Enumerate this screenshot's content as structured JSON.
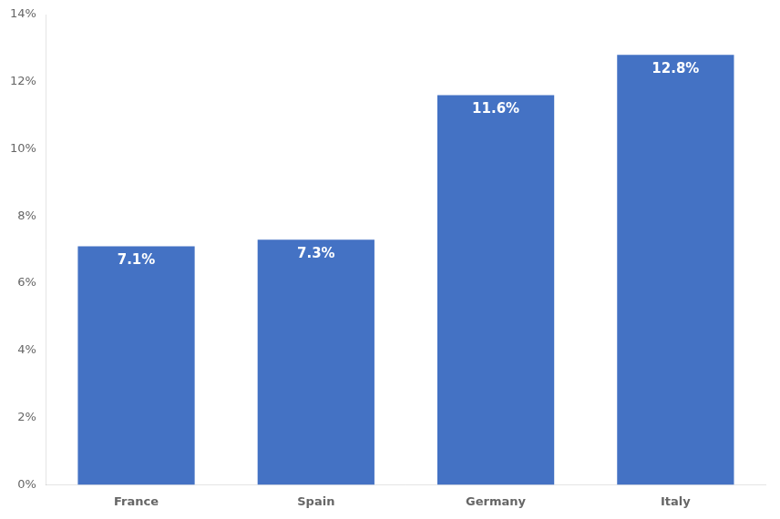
{
  "chart_data": {
    "type": "bar",
    "categories": [
      "France",
      "Spain",
      "Germany",
      "Italy"
    ],
    "values": [
      0.071,
      0.073,
      0.116,
      0.128
    ],
    "value_labels": [
      "7.1%",
      "7.3%",
      "11.6%",
      "12.8%"
    ],
    "color": "#4472C4",
    "ylim": [
      0,
      0.14
    ],
    "yticks": [
      {
        "value": 0,
        "label": "0%"
      },
      {
        "value": 0.02,
        "label": "2%"
      },
      {
        "value": 0.04,
        "label": "4%"
      },
      {
        "value": 0.06,
        "label": "6%"
      },
      {
        "value": 0.08,
        "label": "8%"
      },
      {
        "value": 0.1,
        "label": "10%"
      },
      {
        "value": 0.12,
        "label": "12%"
      },
      {
        "value": 0.14,
        "label": "14%"
      }
    ],
    "grid": false,
    "data_labels": true
  }
}
